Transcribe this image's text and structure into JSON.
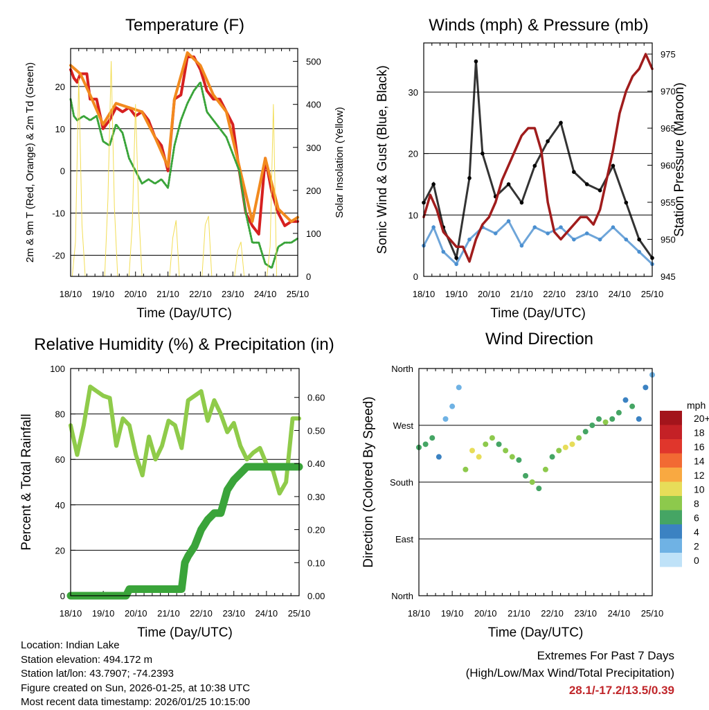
{
  "chart_data": [
    {
      "type": "line",
      "title": "Temperature (F)",
      "xlabel": "Time (Day/UTC)",
      "ylabel": "2m & 9m T (Red, Orange) & 2m Td (Green)",
      "ylabel_right": "Solar Insolation (Yellow)",
      "categories": [
        "18/10",
        "19/10",
        "20/10",
        "21/10",
        "22/10",
        "23/10",
        "24/10",
        "25/10"
      ],
      "ylim": [
        -25,
        29
      ],
      "yticks": [
        "20",
        "10",
        "0",
        "-10",
        "-20"
      ],
      "yticks_values": [
        20,
        10,
        0,
        -10,
        -20
      ],
      "y2lim": [
        0,
        530
      ],
      "y2ticks": [
        "500",
        "400",
        "300",
        "200",
        "100",
        "0"
      ],
      "y2ticks_values": [
        500,
        400,
        300,
        200,
        100,
        0
      ],
      "series": [
        {
          "name": "2m T",
          "color": "#d62020",
          "x": [
            0,
            0.1,
            0.2,
            0.3,
            0.5,
            0.6,
            0.8,
            1.0,
            1.2,
            1.4,
            1.6,
            1.8,
            2.0,
            2.2,
            2.4,
            2.6,
            2.8,
            3.0,
            3.2,
            3.4,
            3.6,
            3.8,
            4.0,
            4.2,
            4.4,
            4.6,
            4.8,
            5.0,
            5.2,
            5.4,
            5.6,
            5.8,
            6.0,
            6.2,
            6.4,
            6.6,
            6.8,
            7.0
          ],
          "values": [
            24,
            22,
            21,
            23,
            23,
            17,
            17,
            10,
            12,
            15,
            14,
            15,
            13,
            14,
            12,
            8,
            6,
            0,
            17,
            18,
            27,
            27,
            24,
            19,
            17,
            17,
            14,
            11,
            0,
            -10,
            -13,
            -15,
            3,
            -5,
            -10,
            -13,
            -12,
            -12
          ]
        },
        {
          "name": "9m T",
          "color": "#f28a1e",
          "x": [
            0,
            0.3,
            0.6,
            1.0,
            1.4,
            1.8,
            2.2,
            2.6,
            3.0,
            3.2,
            3.6,
            4.0,
            4.4,
            4.8,
            5.2,
            5.6,
            6.0,
            6.4,
            6.8,
            7.0
          ],
          "values": [
            25,
            23,
            18,
            11,
            16,
            15,
            14,
            8,
            1,
            17,
            28,
            25,
            18,
            14,
            1,
            -12,
            3,
            -9,
            -12,
            -11
          ]
        },
        {
          "name": "2m Td",
          "color": "#3aa43a",
          "x": [
            0,
            0.1,
            0.2,
            0.4,
            0.6,
            0.8,
            1.0,
            1.2,
            1.4,
            1.6,
            1.8,
            2.0,
            2.2,
            2.4,
            2.6,
            2.8,
            3.0,
            3.2,
            3.4,
            3.6,
            3.8,
            4.0,
            4.2,
            4.4,
            4.6,
            4.8,
            5.0,
            5.2,
            5.4,
            5.6,
            5.8,
            6.0,
            6.2,
            6.4,
            6.6,
            6.8,
            7.0
          ],
          "values": [
            17,
            13,
            12,
            13,
            12,
            13,
            7,
            6,
            11,
            9,
            3,
            0,
            -3,
            -2,
            -3,
            -2,
            -4,
            6,
            12,
            16,
            19,
            21,
            14,
            12,
            10,
            8,
            4,
            0,
            -10,
            -17,
            -17,
            -22,
            -23,
            -18,
            -17,
            -17,
            -16
          ]
        },
        {
          "name": "Solar Insolation",
          "color": "#f2dd55",
          "axis": "right",
          "x": [
            0.05,
            0.15,
            0.25,
            0.35,
            0.45,
            1.05,
            1.15,
            1.25,
            1.35,
            1.45,
            1.8,
            1.9,
            2.0,
            2.1,
            2.2,
            3.05,
            3.15,
            3.25,
            3.35,
            4.05,
            4.15,
            4.25,
            4.35,
            5.05,
            5.15,
            5.25,
            5.35,
            6.05,
            6.15,
            6.25,
            6.35
          ],
          "values": [
            0,
            80,
            460,
            120,
            0,
            0,
            180,
            500,
            160,
            0,
            0,
            120,
            400,
            150,
            0,
            0,
            90,
            130,
            0,
            0,
            120,
            140,
            0,
            0,
            60,
            80,
            0,
            0,
            70,
            400,
            0
          ]
        }
      ]
    },
    {
      "type": "scatter",
      "title": "Winds (mph) & Pressure (mb)",
      "xlabel": "Time (Day/UTC)",
      "ylabel": "Sonic Wind & Gust (Blue, Black)",
      "ylabel_right": "Station Pressure (Maroon)",
      "categories": [
        "18/10",
        "19/10",
        "20/10",
        "21/10",
        "22/10",
        "23/10",
        "24/10",
        "25/10"
      ],
      "ylim": [
        0,
        38
      ],
      "yticks": [
        "30",
        "20",
        "10",
        "0"
      ],
      "yticks_values": [
        30,
        20,
        10,
        0
      ],
      "y2lim": [
        945,
        976.5
      ],
      "y2ticks": [
        "975",
        "970",
        "965",
        "960",
        "955",
        "950",
        "945"
      ],
      "y2ticks_values": [
        975,
        970,
        965,
        960,
        955,
        950,
        945
      ],
      "series": [
        {
          "name": "Sonic Wind",
          "color": "#4a8fd0",
          "x": [
            0,
            0.3,
            0.6,
            1.0,
            1.4,
            1.8,
            2.2,
            2.6,
            3.0,
            3.4,
            3.8,
            4.2,
            4.6,
            5.0,
            5.4,
            5.8,
            6.2,
            6.6,
            7.0
          ],
          "values": [
            5,
            8,
            4,
            2,
            6,
            8,
            7,
            9,
            5,
            8,
            7,
            8,
            6,
            7,
            6,
            8,
            6,
            4,
            2
          ]
        },
        {
          "name": "Gust",
          "color": "#000000",
          "x": [
            0,
            0.3,
            0.6,
            1.0,
            1.4,
            1.6,
            1.8,
            2.2,
            2.6,
            3.0,
            3.4,
            3.8,
            4.2,
            4.6,
            5.0,
            5.4,
            5.8,
            6.2,
            6.6,
            7.0
          ],
          "values": [
            12,
            15,
            8,
            3,
            16,
            35,
            20,
            13,
            15,
            12,
            18,
            22,
            25,
            17,
            15,
            14,
            18,
            12,
            6,
            3
          ]
        },
        {
          "name": "Station Pressure",
          "color": "#a01c1c",
          "axis": "right",
          "x": [
            0,
            0.2,
            0.4,
            0.6,
            0.8,
            1.0,
            1.2,
            1.4,
            1.6,
            1.8,
            2.0,
            2.2,
            2.4,
            2.6,
            2.8,
            3.0,
            3.2,
            3.4,
            3.6,
            3.8,
            4.0,
            4.2,
            4.4,
            4.6,
            4.8,
            5.0,
            5.2,
            5.4,
            5.6,
            5.8,
            6.0,
            6.2,
            6.4,
            6.6,
            6.8,
            7.0
          ],
          "values": [
            953,
            956,
            954,
            951,
            950,
            949,
            949,
            947,
            950,
            952,
            953,
            955,
            958,
            960,
            962,
            964,
            965,
            965,
            962,
            955,
            951,
            950,
            951,
            952,
            953,
            953,
            952,
            954,
            958,
            962,
            967,
            970,
            972,
            973,
            975,
            973
          ]
        }
      ]
    },
    {
      "type": "line",
      "title": "Relative Humidity (%) & Precipitation (in)",
      "xlabel": "Time (Day/UTC)",
      "ylabel": "Percent & Total Rainfall",
      "categories": [
        "18/10",
        "19/10",
        "20/10",
        "21/10",
        "22/10",
        "23/10",
        "24/10",
        "25/10"
      ],
      "ylim": [
        0,
        100
      ],
      "yticks": [
        "100",
        "80",
        "60",
        "40",
        "20",
        "0"
      ],
      "yticks_values": [
        100,
        80,
        60,
        40,
        20,
        0
      ],
      "y2lim": [
        0,
        0.6875
      ],
      "y2ticks": [
        "0.60",
        "0.50",
        "0.40",
        "0.30",
        "0.20",
        "0.10",
        "0.00"
      ],
      "y2ticks_values": [
        0.6,
        0.5,
        0.4,
        0.3,
        0.2,
        0.1,
        0.0
      ],
      "series": [
        {
          "name": "Relative Humidity",
          "color": "#8fcb4a",
          "x": [
            0,
            0.2,
            0.4,
            0.6,
            0.8,
            1.0,
            1.2,
            1.4,
            1.6,
            1.8,
            2.0,
            2.2,
            2.4,
            2.6,
            2.8,
            3.0,
            3.2,
            3.4,
            3.6,
            3.8,
            4.0,
            4.2,
            4.4,
            4.6,
            4.8,
            5.0,
            5.2,
            5.4,
            5.6,
            5.8,
            6.0,
            6.2,
            6.4,
            6.6,
            6.8,
            7.0
          ],
          "values": [
            75,
            62,
            75,
            92,
            90,
            88,
            87,
            66,
            78,
            75,
            62,
            53,
            70,
            60,
            66,
            77,
            75,
            65,
            86,
            88,
            90,
            77,
            86,
            80,
            72,
            76,
            66,
            60,
            63,
            65,
            58,
            55,
            45,
            50,
            78,
            78
          ]
        },
        {
          "name": "Total Precipitation",
          "color": "#3aa43a",
          "axis": "right",
          "x": [
            0,
            0.5,
            1.0,
            1.5,
            1.7,
            1.8,
            2.5,
            3.0,
            3.4,
            3.5,
            3.6,
            3.8,
            4.0,
            4.2,
            4.4,
            4.6,
            4.8,
            5.0,
            5.2,
            5.4,
            5.6,
            5.8,
            6.0,
            6.5,
            7.0
          ],
          "values": [
            0,
            0,
            0,
            0,
            0,
            0.02,
            0.02,
            0.02,
            0.02,
            0.1,
            0.12,
            0.15,
            0.2,
            0.23,
            0.25,
            0.25,
            0.32,
            0.35,
            0.37,
            0.39,
            0.39,
            0.39,
            0.39,
            0.39,
            0.39
          ]
        }
      ]
    },
    {
      "type": "scatter",
      "title": "Wind Direction",
      "xlabel": "Time (Day/UTC)",
      "ylabel": "Direction (Colored By Speed)",
      "categories": [
        "18/10",
        "19/10",
        "20/10",
        "21/10",
        "22/10",
        "23/10",
        "24/10",
        "25/10"
      ],
      "ylim": [
        0,
        360
      ],
      "yticks": [
        "North",
        "West",
        "South",
        "East",
        "North"
      ],
      "yticks_values": [
        360,
        270,
        180,
        90,
        0
      ],
      "legend_title": "mph",
      "legend_labels": [
        "20+",
        "18",
        "16",
        "14",
        "12",
        "10",
        "8",
        "6",
        "4",
        "2",
        "0"
      ],
      "legend_colors": [
        "#a3141b",
        "#c42126",
        "#e0362c",
        "#f26a33",
        "#f9a941",
        "#e7dd59",
        "#8dc94c",
        "#45a564",
        "#3b82c2",
        "#6fb2e4",
        "#bfe2f8"
      ],
      "series": [
        {
          "name": "Direction",
          "x": [
            0,
            0.2,
            0.4,
            0.6,
            0.8,
            1.0,
            1.2,
            1.4,
            1.6,
            1.8,
            2.0,
            2.2,
            2.4,
            2.6,
            2.8,
            3.0,
            3.2,
            3.4,
            3.6,
            3.8,
            4.0,
            4.2,
            4.4,
            4.6,
            4.8,
            5.0,
            5.2,
            5.4,
            5.6,
            5.8,
            6.0,
            6.2,
            6.4,
            6.6,
            6.8,
            7.0
          ],
          "values": [
            235,
            240,
            250,
            220,
            280,
            300,
            330,
            200,
            230,
            220,
            240,
            250,
            240,
            230,
            220,
            215,
            190,
            180,
            170,
            200,
            220,
            230,
            235,
            240,
            250,
            260,
            270,
            280,
            275,
            280,
            290,
            310,
            300,
            280,
            330,
            350
          ],
          "speeds": [
            5,
            6,
            6,
            4,
            2,
            1,
            1,
            8,
            10,
            9,
            8,
            7,
            6,
            8,
            7,
            5,
            6,
            7,
            6,
            7,
            6,
            8,
            9,
            10,
            7,
            6,
            5,
            6,
            7,
            6,
            5,
            4,
            5,
            4,
            3,
            2
          ]
        }
      ]
    }
  ],
  "info": {
    "location": "Location: Indian Lake",
    "elevation": "Station elevation: 494.172 m",
    "latlon": "Station lat/lon: 43.7907; -74.2393",
    "created": "Figure created on Sun, 2026-01-25, at 10:38 UTC",
    "timestamp": "Most recent data timestamp: 2026/01/25 10:15:00"
  },
  "extremes": {
    "line1": "Extremes For Past 7 Days",
    "line2": "(High/Low/Max Wind/Total Precipitation)",
    "values": "28.1/-17.2/13.5/0.39"
  },
  "colors": {
    "axis": "#000000",
    "grid": "#000000"
  }
}
